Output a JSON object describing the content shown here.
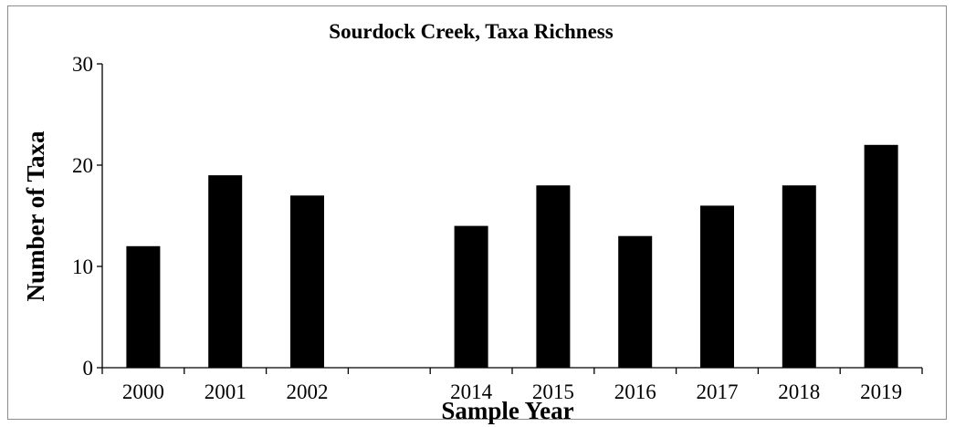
{
  "chart_data": {
    "type": "bar",
    "title": "Sourdock Creek, Taxa Richness",
    "xlabel": "Sample Year",
    "ylabel": "Number of Taxa",
    "categories": [
      "2000",
      "2001",
      "2002",
      "",
      "2014",
      "2015",
      "2016",
      "2017",
      "2018",
      "2019"
    ],
    "values": [
      12,
      19,
      17,
      null,
      14,
      18,
      13,
      16,
      18,
      22
    ],
    "ylim": [
      0,
      30
    ],
    "yticks": [
      "0",
      "10",
      "20",
      "30"
    ],
    "grid": false,
    "legend": "none",
    "bar_color": "#000000"
  }
}
